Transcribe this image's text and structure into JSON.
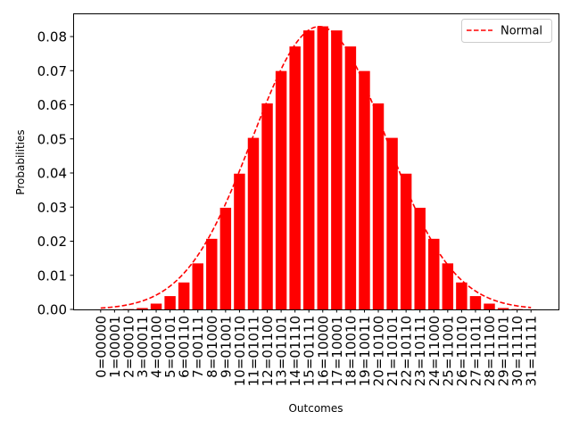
{
  "chart_data": {
    "type": "bar",
    "xlabel": "Outcomes",
    "ylabel": "Probabilities",
    "ylim": [
      0,
      0.0868
    ],
    "yticks": [
      "0.00",
      "0.01",
      "0.02",
      "0.03",
      "0.04",
      "0.05",
      "0.06",
      "0.07",
      "0.08"
    ],
    "grid": false,
    "legend_position": "top-right",
    "bar_color": "#ff0000",
    "categories": [
      "0=00000",
      "1=00001",
      "2=00010",
      "3=00011",
      "4=00100",
      "5=00101",
      "6=00110",
      "7=00111",
      "8=01000",
      "9=01001",
      "10=01010",
      "11=01011",
      "12=01100",
      "13=01101",
      "14=01110",
      "15=01111",
      "16=10000",
      "17=10001",
      "18=10010",
      "19=10011",
      "20=10100",
      "21=10101",
      "22=10110",
      "23=10111",
      "24=11000",
      "25=11001",
      "26=11010",
      "27=11011",
      "28=11100",
      "29=11101",
      "30=11110",
      "31=11111"
    ],
    "values": [
      1e-05,
      3e-05,
      0.0001,
      0.0004,
      0.0017,
      0.0039,
      0.0079,
      0.0135,
      0.0207,
      0.0298,
      0.0398,
      0.0503,
      0.0604,
      0.0699,
      0.0771,
      0.0818,
      0.083,
      0.0818,
      0.0771,
      0.0699,
      0.0604,
      0.0503,
      0.0398,
      0.0298,
      0.0207,
      0.0135,
      0.0079,
      0.0039,
      0.0017,
      0.0004,
      0.0001,
      3e-05
    ],
    "series": [
      {
        "name": "Normal",
        "style": "dashed-line",
        "color": "#ff0000",
        "mean": 15.75,
        "std": 4.81,
        "x_range": [
          0,
          31
        ]
      }
    ]
  }
}
